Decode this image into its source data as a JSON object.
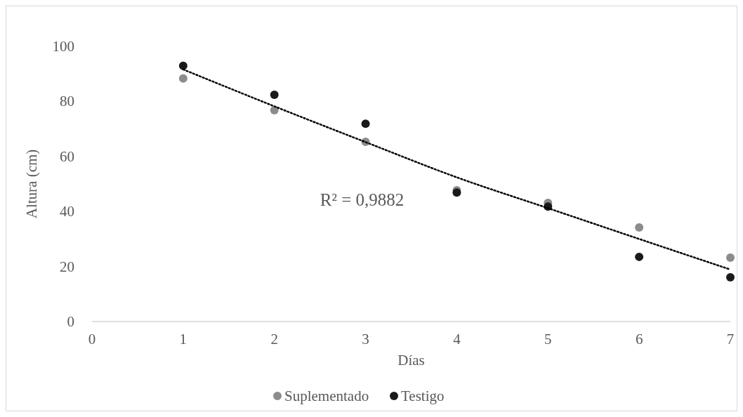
{
  "chart_data": {
    "type": "scatter",
    "xlabel": "Días",
    "ylabel": "Altura (cm)",
    "xlim": [
      0,
      7
    ],
    "xticks": [
      0,
      1,
      2,
      3,
      4,
      5,
      6,
      7
    ],
    "ylim": [
      0,
      100
    ],
    "yticks": [
      0,
      20,
      40,
      60,
      80,
      100
    ],
    "grid": false,
    "legend": "bottom",
    "marker": "circle",
    "x": [
      1,
      2,
      3,
      4,
      5,
      6,
      7
    ],
    "series": [
      {
        "name": "Suplementado",
        "color": "#8c8c8c",
        "values": [
          88.3,
          76.8,
          65.3,
          47.7,
          43.1,
          34.2,
          23.2
        ]
      },
      {
        "name": "Testigo",
        "color": "#1a1a1a",
        "values": [
          92.9,
          82.4,
          71.9,
          46.9,
          41.8,
          23.5,
          16.1
        ]
      },
      {
        "type": "line",
        "color": "#000000",
        "line_style": "dotted",
        "marker": "none",
        "x": [
          1,
          2,
          3,
          4,
          5,
          6,
          7
        ],
        "values": [
          91.6,
          78.2,
          65.2,
          52.4,
          41.2,
          30,
          18.9
        ]
      }
    ],
    "annotations": [
      "R² = 0,9882"
    ]
  }
}
